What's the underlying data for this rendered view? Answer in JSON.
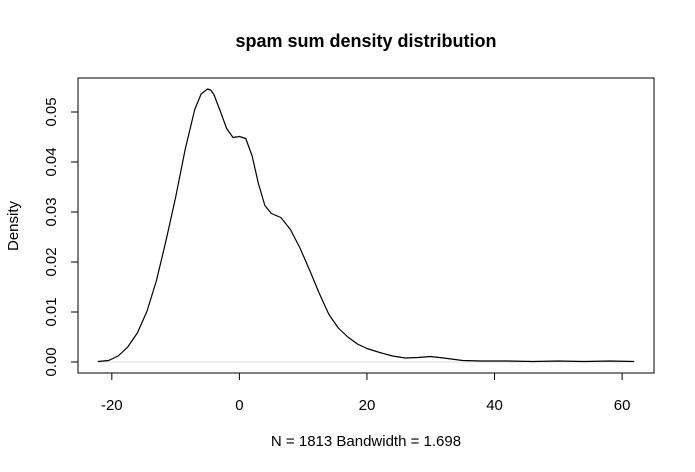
{
  "chart_data": {
    "type": "line",
    "title": "spam sum density distribution",
    "xlabel": "N = 1813   Bandwidth = 1.698",
    "ylabel": "Density",
    "xlim": [
      -25.3,
      65.0
    ],
    "ylim": [
      -0.0022,
      0.0568
    ],
    "x_ticks": [
      -20,
      0,
      20,
      40,
      60
    ],
    "x_tick_labels": [
      "-20",
      "0",
      "20",
      "40",
      "60"
    ],
    "y_ticks": [
      0.0,
      0.01,
      0.02,
      0.03,
      0.04,
      0.05
    ],
    "y_tick_labels": [
      "0.00",
      "0.01",
      "0.02",
      "0.03",
      "0.04",
      "0.05"
    ],
    "grid": false,
    "baseline": {
      "y": 0,
      "color": "#dddddd"
    },
    "series": [
      {
        "color": "#000000",
        "x": [
          -22.2,
          -20.5,
          -19.0,
          -17.5,
          -16.0,
          -14.5,
          -13.0,
          -11.5,
          -10.0,
          -8.5,
          -7.0,
          -6.0,
          -5.0,
          -4.5,
          -4.0,
          -3.0,
          -2.0,
          -1.0,
          0.0,
          1.0,
          2.0,
          3.0,
          4.0,
          5.0,
          6.5,
          8.0,
          9.5,
          11.0,
          12.5,
          14.0,
          15.5,
          17.0,
          18.5,
          20.0,
          22.0,
          24.0,
          26.0,
          28.0,
          30.0,
          32.0,
          35.0,
          38.0,
          42.0,
          46.0,
          50.0,
          54.0,
          58.0,
          61.9
        ],
        "y": [
          0.0001,
          0.0003,
          0.0012,
          0.003,
          0.0058,
          0.0101,
          0.0163,
          0.0243,
          0.0329,
          0.0425,
          0.0505,
          0.0536,
          0.0546,
          0.0544,
          0.0535,
          0.0502,
          0.0467,
          0.0449,
          0.0451,
          0.0447,
          0.0412,
          0.0356,
          0.0313,
          0.0297,
          0.0289,
          0.0265,
          0.0228,
          0.0184,
          0.0138,
          0.0096,
          0.0068,
          0.005,
          0.0036,
          0.0027,
          0.0019,
          0.0012,
          0.0008,
          0.0009,
          0.0011,
          0.0008,
          0.0003,
          0.0002,
          0.0002,
          0.0001,
          0.0002,
          0.0001,
          0.0002,
          0.0001
        ]
      }
    ]
  }
}
